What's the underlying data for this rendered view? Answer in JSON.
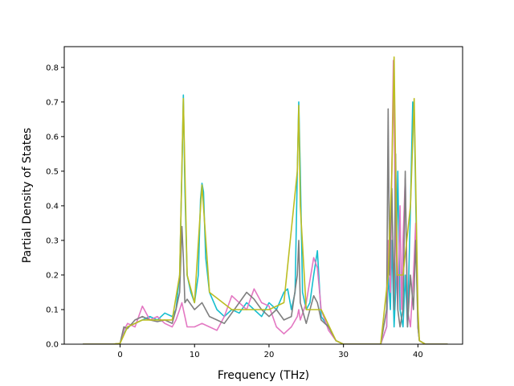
{
  "chart_data": {
    "type": "line",
    "title": "",
    "xlabel": "Frequency (THz)",
    "ylabel": "Partial Density of States",
    "xlim": [
      -7.5,
      46
    ],
    "ylim": [
      0,
      0.86
    ],
    "xticks": [
      0,
      10,
      20,
      30,
      40
    ],
    "yticks": [
      0.0,
      0.1,
      0.2,
      0.3,
      0.4,
      0.5,
      0.6,
      0.7,
      0.8
    ],
    "ytick_labels": [
      "0.0",
      "0.1",
      "0.2",
      "0.3",
      "0.4",
      "0.5",
      "0.6",
      "0.7",
      "0.8"
    ],
    "grid": false,
    "legend": "none",
    "series": [
      {
        "color": "#17becf",
        "x": [
          -5,
          -1,
          0,
          0.5,
          1,
          2,
          3,
          4,
          5,
          6,
          7,
          7.5,
          8,
          8.3,
          8.5,
          8.7,
          9,
          9.5,
          10,
          10.5,
          10.8,
          11,
          11.2,
          11.5,
          12,
          13,
          14,
          15,
          16,
          17,
          18,
          19,
          20,
          21,
          22,
          22.5,
          23,
          23.5,
          23.8,
          24,
          24.2,
          24.5,
          25,
          25.5,
          26,
          26.5,
          27,
          28,
          29,
          30,
          35,
          35.8,
          36,
          36.3,
          36.5,
          36.8,
          37,
          37.3,
          37.6,
          38,
          38.3,
          38.6,
          39,
          39.3,
          39.5,
          39.8,
          40,
          40.2,
          41,
          44
        ],
        "y": [
          0,
          0,
          0.002,
          0.03,
          0.05,
          0.06,
          0.07,
          0.08,
          0.07,
          0.09,
          0.08,
          0.1,
          0.2,
          0.5,
          0.72,
          0.45,
          0.2,
          0.15,
          0.12,
          0.2,
          0.42,
          0.465,
          0.44,
          0.25,
          0.15,
          0.1,
          0.08,
          0.1,
          0.09,
          0.12,
          0.1,
          0.08,
          0.12,
          0.1,
          0.15,
          0.16,
          0.1,
          0.15,
          0.5,
          0.7,
          0.5,
          0.15,
          0.1,
          0.12,
          0.2,
          0.27,
          0.08,
          0.05,
          0.01,
          0,
          0,
          0.05,
          0.2,
          0.1,
          0.3,
          0.05,
          0.15,
          0.5,
          0.1,
          0.05,
          0.2,
          0.05,
          0.4,
          0.7,
          0.68,
          0.3,
          0.05,
          0.01,
          0,
          0
        ]
      },
      {
        "color": "#e377c2",
        "x": [
          -5,
          -1,
          0,
          0.5,
          1,
          2,
          3,
          4,
          5,
          6,
          7,
          7.5,
          8,
          8.3,
          8.5,
          8.7,
          9,
          10,
          11,
          12,
          13,
          14,
          15,
          16,
          17,
          18,
          19,
          20,
          21,
          22,
          23,
          23.8,
          24,
          24.2,
          25,
          26,
          26.5,
          27,
          28,
          29,
          30,
          35,
          35.8,
          36,
          36.3,
          36.5,
          36.7,
          37,
          37.3,
          37.6,
          37.8,
          38,
          38.3,
          38.6,
          39,
          39.4,
          39.7,
          40,
          40.2,
          41,
          44
        ],
        "y": [
          0,
          0,
          0.002,
          0.04,
          0.06,
          0.05,
          0.11,
          0.07,
          0.08,
          0.06,
          0.05,
          0.07,
          0.1,
          0.12,
          0.1,
          0.08,
          0.05,
          0.05,
          0.06,
          0.05,
          0.04,
          0.08,
          0.14,
          0.12,
          0.1,
          0.16,
          0.12,
          0.11,
          0.05,
          0.03,
          0.05,
          0.08,
          0.1,
          0.07,
          0.12,
          0.25,
          0.22,
          0.1,
          0.04,
          0.01,
          0,
          0,
          0.05,
          0.3,
          0.15,
          0.5,
          0.82,
          0.3,
          0.1,
          0.4,
          0.1,
          0.3,
          0.48,
          0.1,
          0.05,
          0.2,
          0.35,
          0.05,
          0.01,
          0,
          0
        ]
      },
      {
        "color": "#7f7f7f",
        "x": [
          -5,
          -1,
          0,
          0.5,
          1,
          2,
          3,
          4,
          5,
          6,
          7,
          7.5,
          8,
          8.3,
          8.5,
          8.7,
          9,
          10,
          11,
          12,
          13,
          14,
          15,
          16,
          17,
          18,
          19,
          20,
          21,
          22,
          23,
          23.8,
          24,
          24.2,
          25,
          26,
          26.5,
          27,
          28,
          29,
          30,
          35,
          35.8,
          36,
          36.2,
          36.5,
          36.8,
          37,
          37.3,
          37.6,
          38,
          38.3,
          38.6,
          39,
          39.4,
          39.7,
          40,
          40.2,
          41,
          44
        ],
        "y": [
          0,
          0,
          0.002,
          0.05,
          0.045,
          0.07,
          0.08,
          0.07,
          0.065,
          0.07,
          0.06,
          0.1,
          0.15,
          0.34,
          0.25,
          0.12,
          0.13,
          0.1,
          0.12,
          0.08,
          0.07,
          0.06,
          0.09,
          0.12,
          0.15,
          0.13,
          0.1,
          0.08,
          0.1,
          0.07,
          0.08,
          0.2,
          0.3,
          0.12,
          0.06,
          0.14,
          0.12,
          0.07,
          0.05,
          0.01,
          0,
          0,
          0.1,
          0.68,
          0.2,
          0.45,
          0.1,
          0.55,
          0.1,
          0.05,
          0.1,
          0.5,
          0.05,
          0.2,
          0.1,
          0.3,
          0.05,
          0.01,
          0,
          0
        ]
      },
      {
        "color": "#bcbd22",
        "x": [
          -5,
          -1,
          0,
          1,
          3,
          5,
          7,
          8,
          8.5,
          9,
          10,
          11,
          12,
          15,
          18,
          20,
          22,
          23.8,
          24,
          24.2,
          25,
          27,
          29,
          30,
          35,
          36,
          36.5,
          36.8,
          37.2,
          38,
          38.5,
          39,
          39.5,
          40,
          40.2,
          41,
          44
        ],
        "y": [
          0,
          0,
          0.002,
          0.05,
          0.07,
          0.07,
          0.07,
          0.2,
          0.71,
          0.2,
          0.12,
          0.46,
          0.15,
          0.1,
          0.1,
          0.1,
          0.12,
          0.5,
          0.69,
          0.4,
          0.1,
          0.1,
          0.01,
          0,
          0,
          0.2,
          0.5,
          0.83,
          0.2,
          0.2,
          0.3,
          0.4,
          0.71,
          0.1,
          0.01,
          0,
          0
        ]
      }
    ]
  }
}
